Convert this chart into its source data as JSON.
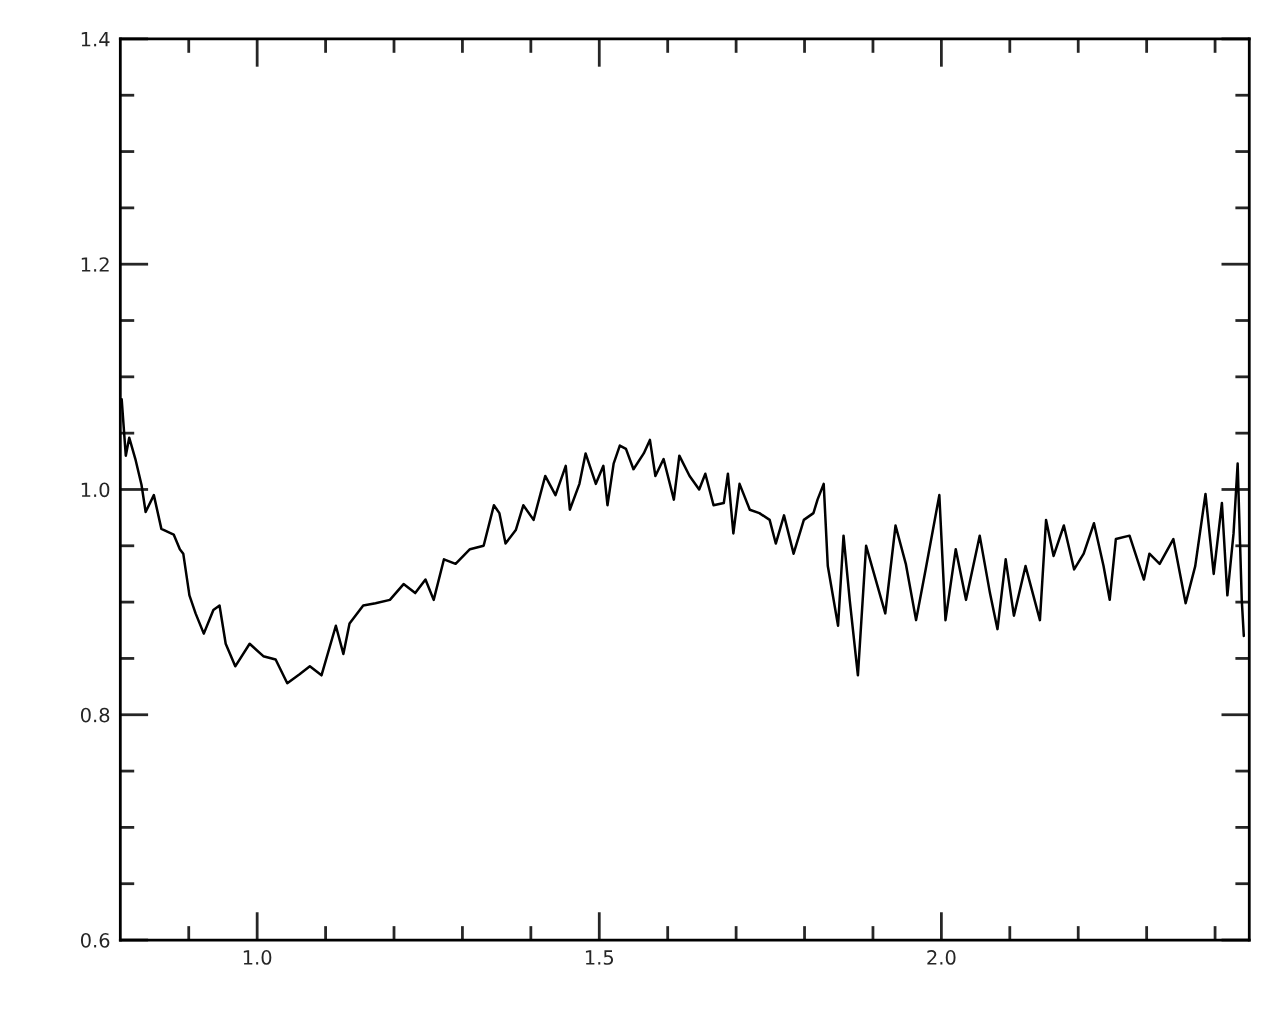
{
  "chart_data": {
    "type": "line",
    "x": [
      0.802,
      0.808,
      0.813,
      0.822,
      0.831,
      0.837,
      0.849,
      0.86,
      0.878,
      0.887,
      0.892,
      0.901,
      0.91,
      0.922,
      0.936,
      0.945,
      0.954,
      0.968,
      0.989,
      1.009,
      1.027,
      1.044,
      1.062,
      1.077,
      1.094,
      1.115,
      1.126,
      1.135,
      1.155,
      1.173,
      1.194,
      1.214,
      1.231,
      1.246,
      1.258,
      1.273,
      1.29,
      1.311,
      1.331,
      1.346,
      1.354,
      1.363,
      1.378,
      1.389,
      1.404,
      1.421,
      1.436,
      1.451,
      1.457,
      1.471,
      1.48,
      1.495,
      1.506,
      1.512,
      1.521,
      1.53,
      1.539,
      1.55,
      1.565,
      1.574,
      1.582,
      1.594,
      1.609,
      1.617,
      1.632,
      1.646,
      1.655,
      1.667,
      1.682,
      1.688,
      1.696,
      1.705,
      1.72,
      1.734,
      1.749,
      1.758,
      1.77,
      1.784,
      1.799,
      1.813,
      1.819,
      1.828,
      1.834,
      1.849,
      1.857,
      1.866,
      1.878,
      1.89,
      1.904,
      1.918,
      1.933,
      1.948,
      1.963,
      1.977,
      1.997,
      2.006,
      2.021,
      2.036,
      2.056,
      2.071,
      2.082,
      2.094,
      2.106,
      2.123,
      2.144,
      2.153,
      2.164,
      2.179,
      2.194,
      2.208,
      2.223,
      2.237,
      2.246,
      2.255,
      2.275,
      2.296,
      2.304,
      2.319,
      2.339,
      2.357,
      2.371,
      2.386,
      2.398,
      2.41,
      2.418,
      2.427,
      2.433,
      2.439,
      2.442
    ],
    "series": [
      {
        "color": "#000000",
        "values": [
          1.08,
          1.03,
          1.046,
          1.027,
          1.004,
          0.98,
          0.995,
          0.965,
          0.96,
          0.947,
          0.943,
          0.906,
          0.89,
          0.872,
          0.893,
          0.897,
          0.863,
          0.843,
          0.863,
          0.852,
          0.849,
          0.828,
          0.836,
          0.843,
          0.835,
          0.879,
          0.854,
          0.881,
          0.897,
          0.899,
          0.902,
          0.916,
          0.908,
          0.92,
          0.902,
          0.938,
          0.934,
          0.947,
          0.95,
          0.986,
          0.979,
          0.952,
          0.964,
          0.986,
          0.973,
          1.012,
          0.995,
          1.021,
          0.982,
          1.005,
          1.032,
          1.005,
          1.021,
          0.986,
          1.023,
          1.039,
          1.036,
          1.018,
          1.032,
          1.044,
          1.012,
          1.027,
          0.991,
          1.03,
          1.012,
          1.0,
          1.014,
          0.986,
          0.988,
          1.014,
          0.961,
          1.005,
          0.982,
          0.979,
          0.973,
          0.952,
          0.977,
          0.943,
          0.973,
          0.979,
          0.991,
          1.005,
          0.932,
          0.879,
          0.959,
          0.902,
          0.835,
          0.95,
          0.92,
          0.89,
          0.968,
          0.934,
          0.884,
          0.929,
          0.995,
          0.884,
          0.947,
          0.902,
          0.959,
          0.908,
          0.876,
          0.938,
          0.888,
          0.932,
          0.884,
          0.973,
          0.941,
          0.968,
          0.929,
          0.943,
          0.97,
          0.932,
          0.902,
          0.956,
          0.959,
          0.92,
          0.943,
          0.934,
          0.956,
          0.899,
          0.932,
          0.996,
          0.925,
          0.988,
          0.906,
          0.961,
          1.023,
          0.902,
          0.87
        ]
      }
    ],
    "xlim": [
      0.8,
      2.45
    ],
    "xticks": [
      {
        "value": 0.9,
        "label": null
      },
      {
        "value": 1.0,
        "label": "1.0"
      },
      {
        "value": 1.1,
        "label": null
      },
      {
        "value": 1.2,
        "label": null
      },
      {
        "value": 1.3,
        "label": null
      },
      {
        "value": 1.4,
        "label": null
      },
      {
        "value": 1.5,
        "label": "1.5"
      },
      {
        "value": 1.6,
        "label": null
      },
      {
        "value": 1.7,
        "label": null
      },
      {
        "value": 1.8,
        "label": null
      },
      {
        "value": 1.9,
        "label": null
      },
      {
        "value": 2.0,
        "label": "2.0"
      },
      {
        "value": 2.1,
        "label": null
      },
      {
        "value": 2.2,
        "label": null
      },
      {
        "value": 2.3,
        "label": null
      },
      {
        "value": 2.4,
        "label": null
      }
    ],
    "ylim": [
      0.6,
      1.4
    ],
    "yticks": [
      {
        "value": 0.6,
        "label": "0.6"
      },
      {
        "value": 0.65,
        "label": null
      },
      {
        "value": 0.7,
        "label": null
      },
      {
        "value": 0.75,
        "label": null
      },
      {
        "value": 0.8,
        "label": "0.8"
      },
      {
        "value": 0.85,
        "label": null
      },
      {
        "value": 0.9,
        "label": null
      },
      {
        "value": 0.95,
        "label": null
      },
      {
        "value": 1.0,
        "label": "1.0"
      },
      {
        "value": 1.05,
        "label": null
      },
      {
        "value": 1.1,
        "label": null
      },
      {
        "value": 1.15,
        "label": null
      },
      {
        "value": 1.2,
        "label": "1.2"
      },
      {
        "value": 1.25,
        "label": null
      },
      {
        "value": 1.3,
        "label": null
      },
      {
        "value": 1.35,
        "label": null
      },
      {
        "value": 1.4,
        "label": "1.4"
      }
    ],
    "grid": false,
    "legend": false,
    "marker": "none",
    "line_style": "solid"
  }
}
